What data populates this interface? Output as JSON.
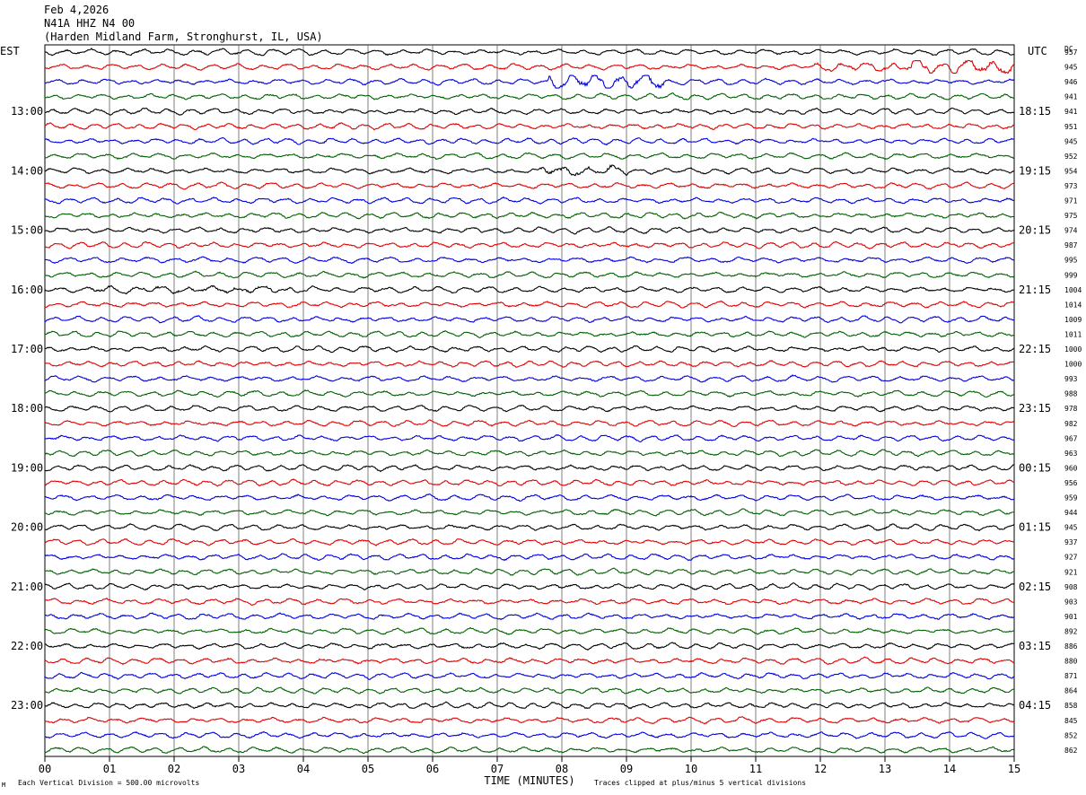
{
  "header": {
    "date": "Feb 4,2026",
    "station": "N41A HHZ N4 00",
    "location": "(Harden Midland Farm, Stronghurst, IL, USA)"
  },
  "chart_data": {
    "type": "line",
    "title": "",
    "left_axis_label": "EST",
    "right_axis_label": "UTC",
    "dc_label": "DC",
    "xlabel": "TIME (MINUTES)",
    "x_ticks": [
      "00",
      "01",
      "02",
      "03",
      "04",
      "05",
      "06",
      "07",
      "08",
      "09",
      "10",
      "11",
      "12",
      "13",
      "14",
      "15"
    ],
    "xlim": [
      0,
      15
    ],
    "left_hour_labels": [
      "13:00",
      "14:00",
      "15:00",
      "16:00",
      "17:00",
      "18:00",
      "19:00",
      "20:00",
      "21:00",
      "22:00",
      "23:00"
    ],
    "right_hour_labels": [
      "18:15",
      "19:15",
      "20:15",
      "21:15",
      "22:15",
      "23:15",
      "00:15",
      "01:15",
      "02:15",
      "03:15",
      "04:15"
    ],
    "trace_colors": [
      "#000000",
      "#e00000",
      "#0000e0",
      "#006000"
    ],
    "dc_values": [
      "957",
      "945",
      "946",
      "941",
      "941",
      "951",
      "945",
      "952",
      "954",
      "973",
      "971",
      "975",
      "974",
      "987",
      "995",
      "999",
      "1004",
      "1014",
      "1009",
      "1011",
      "1000",
      "1000",
      "993",
      "988",
      "978",
      "982",
      "967",
      "963",
      "960",
      "956",
      "959",
      "944",
      "945",
      "937",
      "927",
      "921",
      "908",
      "903",
      "901",
      "892",
      "886",
      "880",
      "871",
      "864",
      "858",
      "845",
      "852",
      "862"
    ],
    "footer_left": "Each Vertical Division =  500.00 microvolts",
    "footer_right": "Traces clipped at plus/minus 5 vertical divisions",
    "corner_mark": "M"
  }
}
